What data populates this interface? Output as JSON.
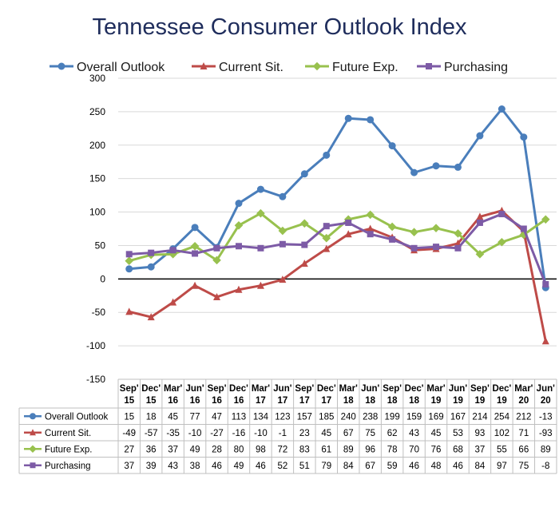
{
  "chart_data": {
    "type": "line",
    "title": "Tennessee Consumer Outlook Index",
    "categories": [
      [
        "Sep'",
        "15"
      ],
      [
        "Dec'",
        "15"
      ],
      [
        "Mar'",
        "16"
      ],
      [
        "Jun'",
        "16"
      ],
      [
        "Sep'",
        "16"
      ],
      [
        "Dec'",
        "16"
      ],
      [
        "Mar'",
        "17"
      ],
      [
        "Jun'",
        "17"
      ],
      [
        "Sep'",
        "17"
      ],
      [
        "Dec'",
        "17"
      ],
      [
        "Mar'",
        "18"
      ],
      [
        "Jun'",
        "18"
      ],
      [
        "Sep'",
        "18"
      ],
      [
        "Dec'",
        "18"
      ],
      [
        "Mar'",
        "19"
      ],
      [
        "Jun'",
        "19"
      ],
      [
        "Sep'",
        "19"
      ],
      [
        "Dec'",
        "19"
      ],
      [
        "Mar'",
        "20"
      ],
      [
        "Jun'",
        "20"
      ]
    ],
    "ylim": [
      -150,
      300
    ],
    "yticks": [
      300,
      250,
      200,
      150,
      100,
      50,
      0,
      -50,
      -100,
      -150
    ],
    "grid": true,
    "legend": "top",
    "series": [
      {
        "name": "Overall Outlook",
        "color": "#4a7ebb",
        "marker": "circle",
        "values": [
          15,
          18,
          45,
          77,
          47,
          113,
          134,
          123,
          157,
          185,
          240,
          238,
          199,
          159,
          169,
          167,
          214,
          254,
          212,
          -13
        ]
      },
      {
        "name": "Current Sit.",
        "color": "#be4b48",
        "marker": "triangle",
        "values": [
          -49,
          -57,
          -35,
          -10,
          -27,
          -16,
          -10,
          -1,
          23,
          45,
          67,
          75,
          62,
          43,
          45,
          53,
          93,
          102,
          71,
          -93
        ]
      },
      {
        "name": "Future Exp.",
        "color": "#98c14e",
        "marker": "diamond",
        "values": [
          27,
          36,
          37,
          49,
          28,
          80,
          98,
          72,
          83,
          61,
          89,
          96,
          78,
          70,
          76,
          68,
          37,
          55,
          66,
          89
        ]
      },
      {
        "name": "Purchasing",
        "color": "#7d5ba6",
        "marker": "square",
        "values": [
          37,
          39,
          43,
          38,
          46,
          49,
          46,
          52,
          51,
          79,
          84,
          67,
          59,
          46,
          48,
          46,
          84,
          97,
          75,
          -8
        ]
      }
    ]
  }
}
